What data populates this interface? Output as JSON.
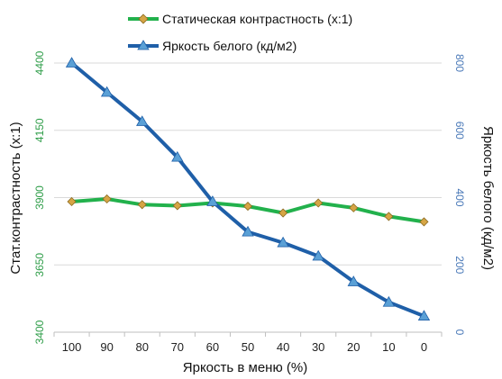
{
  "chart_data": {
    "type": "line",
    "categories": [
      "100",
      "90",
      "80",
      "70",
      "60",
      "50",
      "40",
      "30",
      "20",
      "10",
      "0"
    ],
    "xlabel": "Яркость в меню (%)",
    "ylabel_left": "Стат.контрастность  (x:1)",
    "ylabel_right": "Яркость белого (кд/м2)",
    "y_left": {
      "min": 3400,
      "max": 4400,
      "ticks": [
        3400,
        3650,
        3900,
        4150,
        4400
      ],
      "color": "#2e9d48"
    },
    "y_right": {
      "min": 0,
      "max": 800,
      "ticks": [
        0,
        200,
        400,
        600,
        800
      ],
      "color": "#4a79b8"
    },
    "grid": "horizontal",
    "legend_position": "top",
    "series": [
      {
        "name": "Статическая контрастность (x:1)",
        "axis": "left",
        "color": "#22b14c",
        "marker": "diamond",
        "marker_color": "#d6a545",
        "values": [
          3885,
          3895,
          3874,
          3870,
          3880,
          3868,
          3843,
          3880,
          3862,
          3830,
          3810
        ]
      },
      {
        "name": "Яркость белого (кд/м2)",
        "axis": "right",
        "color": "#1f5fa8",
        "marker": "triangle",
        "marker_color": "#5aa0d6",
        "values": [
          800,
          713,
          626,
          520,
          388,
          298,
          266,
          226,
          150,
          89,
          48
        ]
      }
    ]
  }
}
